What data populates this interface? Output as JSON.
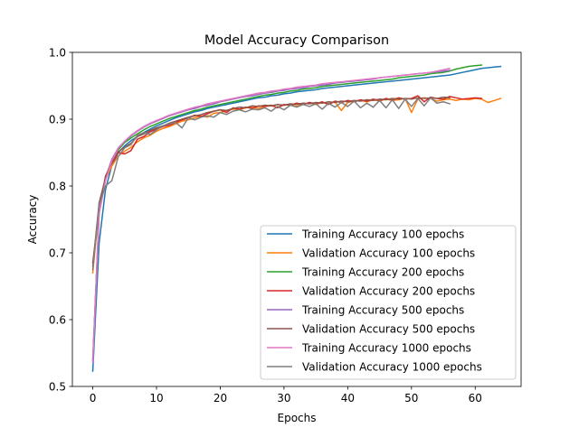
{
  "chart_data": {
    "type": "line",
    "title": "Model Accuracy Comparison",
    "xlabel": "Epochs",
    "ylabel": "Accuracy",
    "xlim": [
      -3.2,
      67.2
    ],
    "ylim": [
      0.5,
      1.0
    ],
    "xticks": [
      0,
      10,
      20,
      30,
      40,
      50,
      60
    ],
    "yticks": [
      0.5,
      0.6,
      0.7,
      0.8,
      0.9,
      1.0
    ],
    "xtick_labels": [
      "0",
      "10",
      "20",
      "30",
      "40",
      "50",
      "60"
    ],
    "ytick_labels": [
      "0.5",
      "0.6",
      "0.7",
      "0.8",
      "0.9",
      "1.0"
    ],
    "grid": false,
    "legend_position": "lower-right",
    "series": [
      {
        "name": "Training Accuracy 100 epochs",
        "color": "#1f77b4",
        "y": [
          0.523,
          0.715,
          0.795,
          0.831,
          0.85,
          0.86,
          0.868,
          0.874,
          0.88,
          0.885,
          0.89,
          0.894,
          0.898,
          0.902,
          0.905,
          0.908,
          0.911,
          0.913,
          0.916,
          0.918,
          0.92,
          0.922,
          0.924,
          0.926,
          0.928,
          0.93,
          0.932,
          0.933,
          0.935,
          0.936,
          0.938,
          0.939,
          0.941,
          0.942,
          0.943,
          0.944,
          0.946,
          0.947,
          0.948,
          0.949,
          0.95,
          0.951,
          0.952,
          0.953,
          0.954,
          0.955,
          0.956,
          0.957,
          0.958,
          0.959,
          0.96,
          0.961,
          0.962,
          0.963,
          0.964,
          0.965,
          0.966,
          0.968,
          0.97,
          0.972,
          0.974,
          0.976,
          0.977,
          0.978,
          0.979
        ]
      },
      {
        "name": "Validation Accuracy 100 epochs",
        "color": "#ff7f0e",
        "y": [
          0.67,
          0.77,
          0.81,
          0.83,
          0.845,
          0.852,
          0.858,
          0.866,
          0.872,
          0.876,
          0.882,
          0.886,
          0.889,
          0.893,
          0.897,
          0.899,
          0.902,
          0.905,
          0.903,
          0.909,
          0.91,
          0.913,
          0.915,
          0.914,
          0.917,
          0.918,
          0.916,
          0.919,
          0.92,
          0.918,
          0.921,
          0.922,
          0.919,
          0.923,
          0.924,
          0.922,
          0.925,
          0.923,
          0.926,
          0.913,
          0.925,
          0.927,
          0.928,
          0.926,
          0.929,
          0.927,
          0.93,
          0.928,
          0.929,
          0.931,
          0.91,
          0.93,
          0.932,
          0.931,
          0.927,
          0.929,
          0.93,
          0.928,
          0.93,
          0.929,
          0.931,
          0.93,
          0.925,
          0.928,
          0.931
        ]
      },
      {
        "name": "Training Accuracy 200 epochs",
        "color": "#2ca02c",
        "y": [
          0.54,
          0.76,
          0.81,
          0.838,
          0.854,
          0.865,
          0.872,
          0.878,
          0.884,
          0.889,
          0.893,
          0.897,
          0.901,
          0.904,
          0.907,
          0.91,
          0.913,
          0.915,
          0.918,
          0.92,
          0.922,
          0.924,
          0.926,
          0.928,
          0.93,
          0.932,
          0.934,
          0.936,
          0.937,
          0.939,
          0.94,
          0.942,
          0.943,
          0.945,
          0.946,
          0.947,
          0.949,
          0.95,
          0.951,
          0.952,
          0.953,
          0.954,
          0.955,
          0.956,
          0.957,
          0.958,
          0.959,
          0.96,
          0.962,
          0.963,
          0.964,
          0.965,
          0.966,
          0.968,
          0.969,
          0.97,
          0.972,
          0.975,
          0.977,
          0.979,
          0.98,
          0.981
        ]
      },
      {
        "name": "Validation Accuracy 200 epochs",
        "color": "#d62728",
        "y": [
          0.685,
          0.765,
          0.815,
          0.835,
          0.85,
          0.848,
          0.853,
          0.87,
          0.874,
          0.881,
          0.885,
          0.889,
          0.891,
          0.895,
          0.899,
          0.902,
          0.906,
          0.904,
          0.908,
          0.912,
          0.914,
          0.91,
          0.917,
          0.915,
          0.918,
          0.916,
          0.92,
          0.919,
          0.921,
          0.917,
          0.922,
          0.921,
          0.924,
          0.922,
          0.925,
          0.923,
          0.926,
          0.922,
          0.927,
          0.925,
          0.928,
          0.926,
          0.929,
          0.927,
          0.93,
          0.928,
          0.931,
          0.929,
          0.932,
          0.93,
          0.931,
          0.935,
          0.926,
          0.933,
          0.931,
          0.93,
          0.934,
          0.932,
          0.93,
          0.931,
          0.932,
          0.931
        ]
      },
      {
        "name": "Training Accuracy 500 epochs",
        "color": "#9467bd",
        "y": [
          0.538,
          0.762,
          0.812,
          0.84,
          0.857,
          0.867,
          0.875,
          0.882,
          0.888,
          0.893,
          0.897,
          0.901,
          0.905,
          0.908,
          0.911,
          0.914,
          0.916,
          0.919,
          0.921,
          0.923,
          0.926,
          0.928,
          0.93,
          0.932,
          0.934,
          0.935,
          0.937,
          0.939,
          0.94,
          0.942,
          0.943,
          0.945,
          0.946,
          0.947,
          0.949,
          0.95,
          0.951,
          0.952,
          0.954,
          0.955,
          0.956,
          0.957,
          0.958,
          0.959,
          0.96,
          0.962,
          0.963,
          0.964,
          0.965,
          0.966,
          0.967,
          0.968,
          0.969,
          0.97,
          0.971,
          0.972,
          0.973
        ]
      },
      {
        "name": "Validation Accuracy 500 epochs",
        "color": "#8c564b",
        "y": [
          0.68,
          0.775,
          0.812,
          0.838,
          0.851,
          0.858,
          0.864,
          0.874,
          0.878,
          0.883,
          0.887,
          0.89,
          0.894,
          0.897,
          0.9,
          0.903,
          0.905,
          0.907,
          0.91,
          0.912,
          0.914,
          0.913,
          0.916,
          0.918,
          0.917,
          0.92,
          0.919,
          0.921,
          0.92,
          0.922,
          0.921,
          0.923,
          0.922,
          0.924,
          0.923,
          0.925,
          0.924,
          0.926,
          0.925,
          0.927,
          0.926,
          0.928,
          0.927,
          0.929,
          0.928,
          0.93,
          0.929,
          0.931,
          0.93,
          0.931,
          0.93,
          0.932,
          0.931,
          0.932,
          0.931,
          0.933,
          0.932
        ]
      },
      {
        "name": "Training Accuracy 1000 epochs",
        "color": "#e377c2",
        "y": [
          0.536,
          0.758,
          0.808,
          0.838,
          0.856,
          0.867,
          0.876,
          0.883,
          0.889,
          0.894,
          0.898,
          0.902,
          0.906,
          0.909,
          0.912,
          0.915,
          0.918,
          0.92,
          0.923,
          0.925,
          0.927,
          0.929,
          0.931,
          0.933,
          0.935,
          0.937,
          0.939,
          0.94,
          0.942,
          0.943,
          0.945,
          0.946,
          0.948,
          0.949,
          0.95,
          0.951,
          0.953,
          0.954,
          0.955,
          0.956,
          0.957,
          0.958,
          0.959,
          0.96,
          0.961,
          0.962,
          0.963,
          0.964,
          0.965,
          0.966,
          0.967,
          0.968,
          0.969,
          0.97,
          0.972,
          0.974,
          0.976
        ]
      },
      {
        "name": "Validation Accuracy 1000 epochs",
        "color": "#7f7f7f",
        "y": [
          0.675,
          0.772,
          0.8,
          0.808,
          0.844,
          0.857,
          0.862,
          0.876,
          0.88,
          0.877,
          0.884,
          0.89,
          0.893,
          0.895,
          0.887,
          0.902,
          0.899,
          0.903,
          0.905,
          0.903,
          0.91,
          0.907,
          0.912,
          0.914,
          0.911,
          0.915,
          0.914,
          0.917,
          0.912,
          0.919,
          0.914,
          0.921,
          0.918,
          0.922,
          0.919,
          0.923,
          0.915,
          0.924,
          0.918,
          0.925,
          0.919,
          0.927,
          0.917,
          0.924,
          0.918,
          0.928,
          0.917,
          0.929,
          0.916,
          0.93,
          0.919,
          0.931,
          0.92,
          0.932,
          0.924,
          0.926,
          0.923
        ]
      }
    ]
  }
}
